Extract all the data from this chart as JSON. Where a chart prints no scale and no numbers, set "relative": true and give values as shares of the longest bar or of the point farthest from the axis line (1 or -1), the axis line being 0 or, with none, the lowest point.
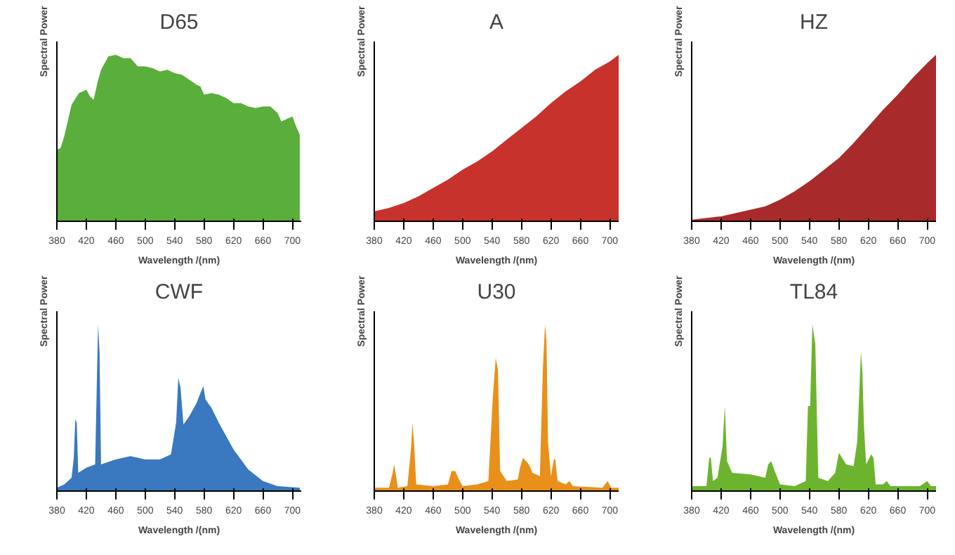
{
  "chart_data": [
    {
      "type": "area",
      "title": "D65",
      "xlabel": "Wavelength /(nm)",
      "ylabel": "Spectral Power",
      "relative": true,
      "color": "#5aae3c",
      "xlim": [
        380,
        712
      ],
      "xticks": [
        380,
        420,
        460,
        500,
        540,
        580,
        620,
        660,
        700
      ],
      "grid": false,
      "x": [
        380,
        385,
        390,
        400,
        410,
        420,
        425,
        430,
        435,
        440,
        450,
        460,
        465,
        470,
        475,
        480,
        490,
        500,
        510,
        520,
        530,
        540,
        550,
        560,
        570,
        575,
        580,
        590,
        600,
        610,
        620,
        630,
        640,
        650,
        660,
        670,
        680,
        685,
        690,
        700,
        705,
        710
      ],
      "values": [
        0.43,
        0.44,
        0.51,
        0.7,
        0.77,
        0.79,
        0.75,
        0.73,
        0.83,
        0.91,
        0.99,
        1,
        0.99,
        0.98,
        0.98,
        0.98,
        0.93,
        0.93,
        0.92,
        0.9,
        0.91,
        0.89,
        0.88,
        0.85,
        0.82,
        0.81,
        0.76,
        0.77,
        0.76,
        0.74,
        0.71,
        0.71,
        0.69,
        0.68,
        0.69,
        0.69,
        0.65,
        0.6,
        0.61,
        0.63,
        0.57,
        0.52
      ]
    },
    {
      "type": "area",
      "title": "A",
      "xlabel": "Wavelength /(nm)",
      "ylabel": "Spectral Power",
      "relative": true,
      "color": "#c8322c",
      "xlim": [
        380,
        712
      ],
      "xticks": [
        380,
        420,
        460,
        500,
        540,
        580,
        620,
        660,
        700
      ],
      "grid": false,
      "x": [
        380,
        400,
        420,
        440,
        460,
        480,
        500,
        520,
        540,
        560,
        580,
        600,
        620,
        640,
        660,
        680,
        700,
        712
      ],
      "values": [
        0.06,
        0.08,
        0.11,
        0.15,
        0.2,
        0.25,
        0.31,
        0.36,
        0.42,
        0.49,
        0.56,
        0.63,
        0.71,
        0.78,
        0.84,
        0.91,
        0.96,
        1
      ]
    },
    {
      "type": "area",
      "title": "HZ",
      "xlabel": "Wavelength /(nm)",
      "ylabel": "Spectral Power",
      "relative": true,
      "color": "#a82a2a",
      "xlim": [
        380,
        712
      ],
      "xticks": [
        380,
        420,
        460,
        500,
        540,
        580,
        620,
        660,
        700
      ],
      "grid": false,
      "x": [
        380,
        400,
        420,
        440,
        460,
        480,
        500,
        520,
        540,
        560,
        580,
        600,
        620,
        640,
        660,
        680,
        700,
        712
      ],
      "values": [
        0.01,
        0.02,
        0.03,
        0.05,
        0.07,
        0.09,
        0.13,
        0.18,
        0.24,
        0.31,
        0.38,
        0.47,
        0.57,
        0.67,
        0.76,
        0.86,
        0.95,
        1
      ]
    },
    {
      "type": "area",
      "title": "CWF",
      "xlabel": "Wavelength /(nm)",
      "ylabel": "Spectral Power",
      "relative": true,
      "color": "#3a78c0",
      "xlim": [
        380,
        712
      ],
      "xticks": [
        380,
        420,
        460,
        500,
        540,
        580,
        620,
        660,
        700
      ],
      "grid": false,
      "x": [
        380,
        390,
        400,
        403,
        405,
        407,
        409,
        420,
        432,
        434,
        436,
        438,
        440,
        460,
        480,
        500,
        520,
        535,
        542,
        545,
        548,
        552,
        560,
        570,
        576,
        579,
        582,
        590,
        600,
        620,
        640,
        660,
        680,
        710
      ],
      "values": [
        0.02,
        0.04,
        0.08,
        0.2,
        0.43,
        0.41,
        0.11,
        0.14,
        0.16,
        0.59,
        1,
        0.83,
        0.16,
        0.19,
        0.21,
        0.19,
        0.19,
        0.22,
        0.41,
        0.68,
        0.62,
        0.4,
        0.45,
        0.53,
        0.6,
        0.63,
        0.55,
        0.5,
        0.41,
        0.25,
        0.13,
        0.06,
        0.03,
        0.02
      ]
    },
    {
      "type": "area",
      "title": "U30",
      "xlabel": "Wavelength /(nm)",
      "ylabel": "Spectral Power",
      "relative": true,
      "color": "#e8901a",
      "xlim": [
        380,
        712
      ],
      "xticks": [
        380,
        420,
        460,
        500,
        540,
        580,
        620,
        660,
        700
      ],
      "grid": false,
      "x": [
        380,
        400,
        405,
        407,
        409,
        412,
        425,
        430,
        432,
        434,
        437,
        460,
        480,
        485,
        490,
        495,
        500,
        520,
        535,
        539,
        541,
        545,
        548,
        551,
        560,
        575,
        578,
        582,
        590,
        595,
        605,
        609,
        612,
        614,
        616,
        620,
        624,
        626,
        629,
        640,
        645,
        650,
        690,
        697,
        702,
        712
      ],
      "values": [
        0.02,
        0.02,
        0.11,
        0.16,
        0.11,
        0.02,
        0.03,
        0.26,
        0.41,
        0.29,
        0.04,
        0.03,
        0.04,
        0.12,
        0.12,
        0.07,
        0.03,
        0.04,
        0.06,
        0.39,
        0.56,
        0.8,
        0.73,
        0.12,
        0.06,
        0.07,
        0.14,
        0.2,
        0.16,
        0.11,
        0.09,
        0.73,
        1,
        0.9,
        0.3,
        0.09,
        0.19,
        0.19,
        0.06,
        0.04,
        0.06,
        0.03,
        0.02,
        0.06,
        0.02,
        0.02
      ]
    },
    {
      "type": "area",
      "title": "TL84",
      "xlabel": "Wavelength /(nm)",
      "ylabel": "Spectral Power",
      "relative": true,
      "color": "#6cb42e",
      "xlim": [
        380,
        712
      ],
      "xticks": [
        380,
        420,
        460,
        500,
        540,
        580,
        620,
        660,
        700
      ],
      "grid": false,
      "x": [
        380,
        400,
        404,
        406,
        409,
        415,
        422,
        425,
        428,
        435,
        460,
        480,
        484,
        488,
        492,
        500,
        520,
        535,
        538,
        541,
        544,
        548,
        552,
        565,
        575,
        580,
        590,
        600,
        605,
        610,
        612,
        614,
        617,
        624,
        627,
        630,
        640,
        645,
        650,
        690,
        700,
        705,
        712
      ],
      "values": [
        0.03,
        0.03,
        0.2,
        0.2,
        0.06,
        0.08,
        0.27,
        0.51,
        0.18,
        0.11,
        0.1,
        0.08,
        0.16,
        0.18,
        0.13,
        0.04,
        0.03,
        0.06,
        0.51,
        0.51,
        1,
        0.88,
        0.08,
        0.06,
        0.11,
        0.23,
        0.16,
        0.15,
        0.3,
        0.84,
        0.71,
        0.4,
        0.16,
        0.22,
        0.2,
        0.04,
        0.04,
        0.06,
        0.03,
        0.03,
        0.06,
        0.03,
        0.03
      ]
    }
  ]
}
